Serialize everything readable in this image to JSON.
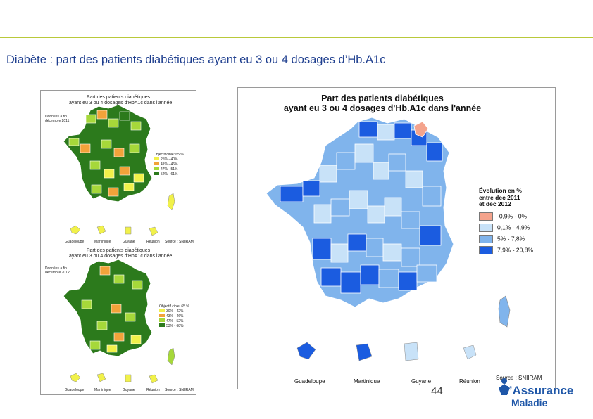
{
  "slide": {
    "title": "Diabète : part des patients diabétiques ayant eu 3 ou 4 dosages d’Hb.A1c",
    "page_number": "44"
  },
  "left_top_map": {
    "title_line1": "Part des patients diabétiques",
    "title_line2": "ayant eu 3 ou 4 dosages d'HbA1c dans l'année",
    "data_label_line1": "Données à fin",
    "data_label_line2": "décembre 2011",
    "legend_title": "Objectif cible: 65 %",
    "legend_items": [
      {
        "label": "25% - 40%",
        "color": "#f1f14a"
      },
      {
        "label": "41% - 46%",
        "color": "#f2a33a"
      },
      {
        "label": "47% - 51%",
        "color": "#a6d83a"
      },
      {
        "label": "52% - 61%",
        "color": "#2c7a1c"
      }
    ],
    "dom_labels": [
      "Guadeloupe",
      "Martinique",
      "Guyane",
      "Réunion"
    ],
    "source": "Source : SNIIRAM"
  },
  "left_bottom_map": {
    "title_line1": "Part des patients diabétiques",
    "title_line2": "ayant eu 3 ou 4 dosages d'HbA1c dans l'année",
    "data_label_line1": "Données à fin",
    "data_label_line2": "décembre 2012",
    "legend_title": "Objectif cible: 65 %",
    "legend_items": [
      {
        "label": "30% - 42%",
        "color": "#f1f14a"
      },
      {
        "label": "43% - 46%",
        "color": "#f2a33a"
      },
      {
        "label": "47% - 52%",
        "color": "#a6d83a"
      },
      {
        "label": "53% - 68%",
        "color": "#2c7a1c"
      }
    ],
    "dom_labels": [
      "Guadeloupe",
      "Martinique",
      "Guyane",
      "Réunion"
    ],
    "source": "Source : SNIIRAM"
  },
  "right_map": {
    "title_line1": "Part des patients diabétiques",
    "title_line2": "ayant eu 3 ou 4 dosages d'Hb.A1c dans l'année",
    "legend_title_line1": "Évolution en %",
    "legend_title_line2": "entre dec 2011",
    "legend_title_line3": "et dec 2012",
    "legend_items": [
      {
        "label": "-0,9% - 0%",
        "color": "#f4a38c"
      },
      {
        "label": "0,1% - 4,9%",
        "color": "#c8e2f8"
      },
      {
        "label": "5% - 7,8%",
        "color": "#80b4ec"
      },
      {
        "label": "7,9% - 20,8%",
        "color": "#1b5ce0"
      }
    ],
    "dom_labels": [
      "Guadeloupe",
      "Martinique",
      "Guyane",
      "Réunion"
    ],
    "source": "Source : SNIIRAM"
  },
  "logo": {
    "line1": "l’Assurance",
    "line2": "Maladie"
  },
  "colors": {
    "title_blue": "#1f3f8f",
    "rule_green": "#b9c93a",
    "logo_blue": "#1f57a8"
  }
}
